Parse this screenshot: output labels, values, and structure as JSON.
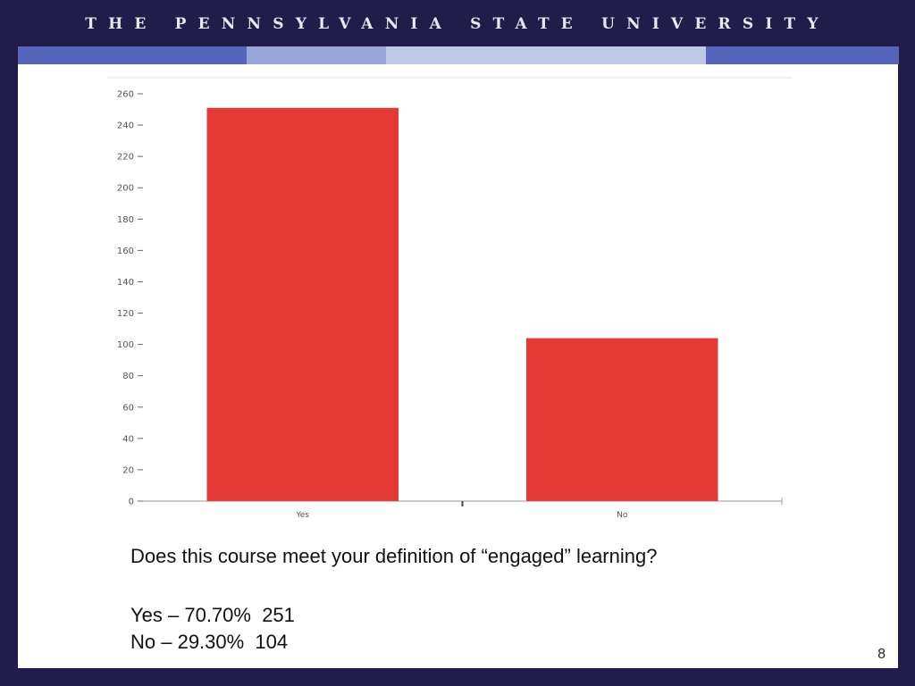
{
  "header": {
    "title": "THE PENNSYLVANIA STATE UNIVERSITY"
  },
  "slide": {
    "question": "Does this course meet your definition of “engaged” learning?",
    "results": [
      {
        "text": "Yes – 70.70%  251"
      },
      {
        "text": "No – 29.30%  104"
      }
    ],
    "page_number": "8"
  },
  "colors": {
    "background": "#211c4a",
    "slide": "#ffffff",
    "bar": "#e53935",
    "band_dark": "#5566b8",
    "band_light": "#bfc9e6"
  },
  "chart_data": {
    "type": "bar",
    "categories": [
      "Yes",
      "No"
    ],
    "values": [
      251,
      104
    ],
    "ylim": [
      0,
      260
    ],
    "yticks": [
      0,
      20,
      40,
      60,
      80,
      100,
      120,
      140,
      160,
      180,
      200,
      220,
      240,
      260
    ],
    "title": "",
    "xlabel": "",
    "ylabel": "",
    "grid": false,
    "bar_color": "#e53935"
  }
}
